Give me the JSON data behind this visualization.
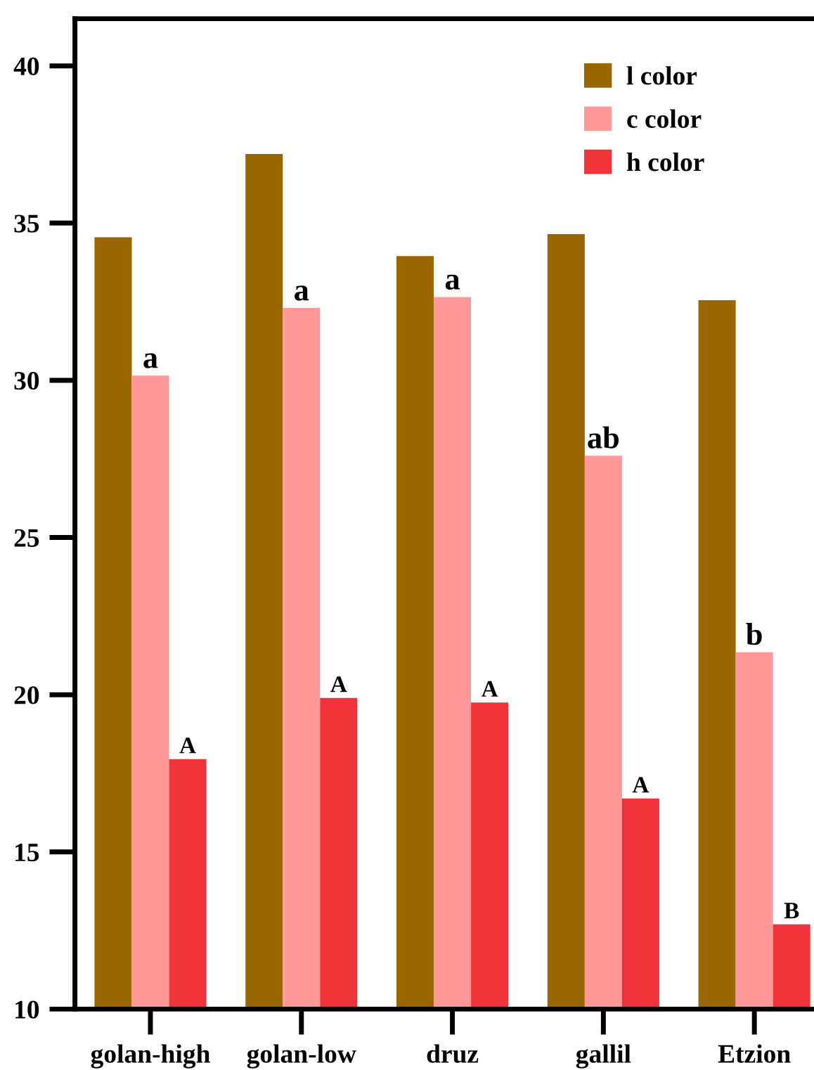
{
  "chart_data": {
    "type": "bar",
    "categories": [
      "golan-high",
      "golan-low",
      "druz",
      "gallil",
      "Etzion"
    ],
    "series": [
      {
        "name": "l color",
        "color": "#996600",
        "values": [
          34.55,
          37.2,
          33.95,
          34.65,
          32.55
        ]
      },
      {
        "name": "c color",
        "color": "#ff9999",
        "values": [
          30.15,
          32.3,
          32.65,
          27.6,
          21.35
        ],
        "value_labels": [
          "a",
          "a",
          "a",
          "ab",
          "b"
        ]
      },
      {
        "name": "h color",
        "color": "#f0343a",
        "values": [
          17.95,
          19.9,
          19.75,
          16.7,
          12.7
        ],
        "value_labels": [
          "A",
          "A",
          "A",
          "A",
          "B"
        ]
      }
    ],
    "ylim": [
      10,
      41.5
    ],
    "yticks": [
      10,
      15,
      20,
      25,
      30,
      35,
      40
    ],
    "legend": "top right"
  }
}
